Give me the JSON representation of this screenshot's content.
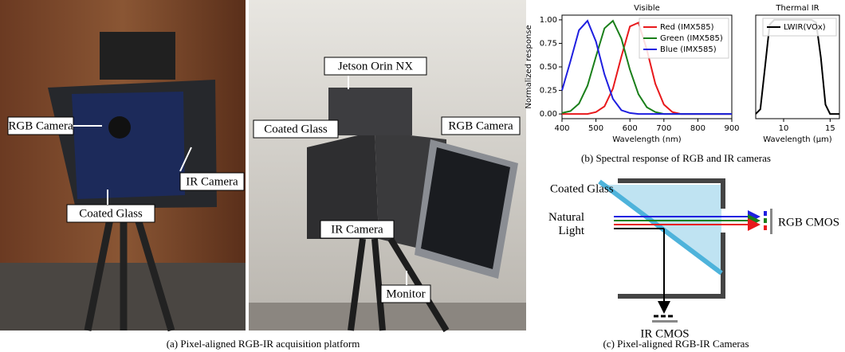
{
  "panel_a": {
    "left_labels": [
      "RGB Camera",
      "IR Camera",
      "Coated Glass"
    ],
    "right_labels": [
      "Jetson Orin NX",
      "Coated Glass",
      "RGB Camera",
      "IR Camera",
      "Monitor"
    ],
    "caption": "(a) Pixel-aligned RGB-IR acquisition platform"
  },
  "chart_data": [
    {
      "type": "line",
      "title": "Visible",
      "xlabel": "Wavelength (nm)",
      "ylabel": "Normalized response",
      "x": [
        400,
        425,
        450,
        475,
        500,
        525,
        550,
        575,
        600,
        625,
        650,
        675,
        700,
        725,
        750,
        775,
        800,
        825,
        850,
        875,
        900
      ],
      "series": [
        {
          "name": "Red (IMX585)",
          "color": "#e8191c",
          "values": [
            0,
            0,
            0,
            0,
            0.02,
            0.08,
            0.27,
            0.61,
            0.93,
            0.97,
            0.68,
            0.32,
            0.1,
            0.02,
            0,
            0,
            0,
            0,
            0,
            0,
            0
          ]
        },
        {
          "name": "Green (IMX585)",
          "color": "#1a7f1a",
          "values": [
            0.01,
            0.03,
            0.11,
            0.3,
            0.61,
            0.91,
            0.99,
            0.8,
            0.47,
            0.21,
            0.07,
            0.02,
            0,
            0,
            0,
            0,
            0,
            0,
            0,
            0,
            0
          ]
        },
        {
          "name": "Blue (IMX585)",
          "color": "#1f1fe0",
          "values": [
            0.25,
            0.56,
            0.89,
            0.99,
            0.77,
            0.42,
            0.16,
            0.04,
            0.01,
            0,
            0,
            0,
            0,
            0,
            0,
            0,
            0,
            0,
            0,
            0,
            0
          ]
        }
      ],
      "xlim": [
        400,
        900
      ],
      "ylim": [
        -0.05,
        1.05
      ],
      "xticks": [
        400,
        500,
        600,
        700,
        800,
        900
      ],
      "yticks": [
        {
          "value": 0,
          "label": "0.00"
        },
        {
          "value": 0.25,
          "label": "0.25"
        },
        {
          "value": 0.5,
          "label": "0.50"
        },
        {
          "value": 0.75,
          "label": "0.75"
        },
        {
          "value": 1,
          "label": "1.00"
        }
      ],
      "legend": "upper right"
    },
    {
      "type": "line",
      "title": "Thermal IR",
      "xlabel": "Wavelength (μm)",
      "x": [
        7,
        7.5,
        8,
        8.5,
        9,
        10,
        11,
        12,
        13,
        13.5,
        14,
        14.5,
        15,
        16
      ],
      "series": [
        {
          "name": "LWIR(VOx)",
          "color": "#000000",
          "values": [
            0,
            0.05,
            0.5,
            0.95,
            1,
            1,
            1,
            1,
            1,
            0.97,
            0.6,
            0.1,
            0,
            0
          ]
        }
      ],
      "xlim": [
        7,
        16
      ],
      "ylim": [
        -0.05,
        1.05
      ],
      "xticks": [
        10,
        15
      ],
      "legend": "upper right"
    }
  ],
  "caption_b": "(b) Spectral response of RGB and IR cameras",
  "diagram_c": {
    "coated_glass": "Coated Glass",
    "source": "Natural\nLight",
    "rgb_sensor": "RGB CMOS",
    "ir_sensor": "IR CMOS",
    "caption": "(c) Pixel-aligned RGB-IR Cameras"
  }
}
